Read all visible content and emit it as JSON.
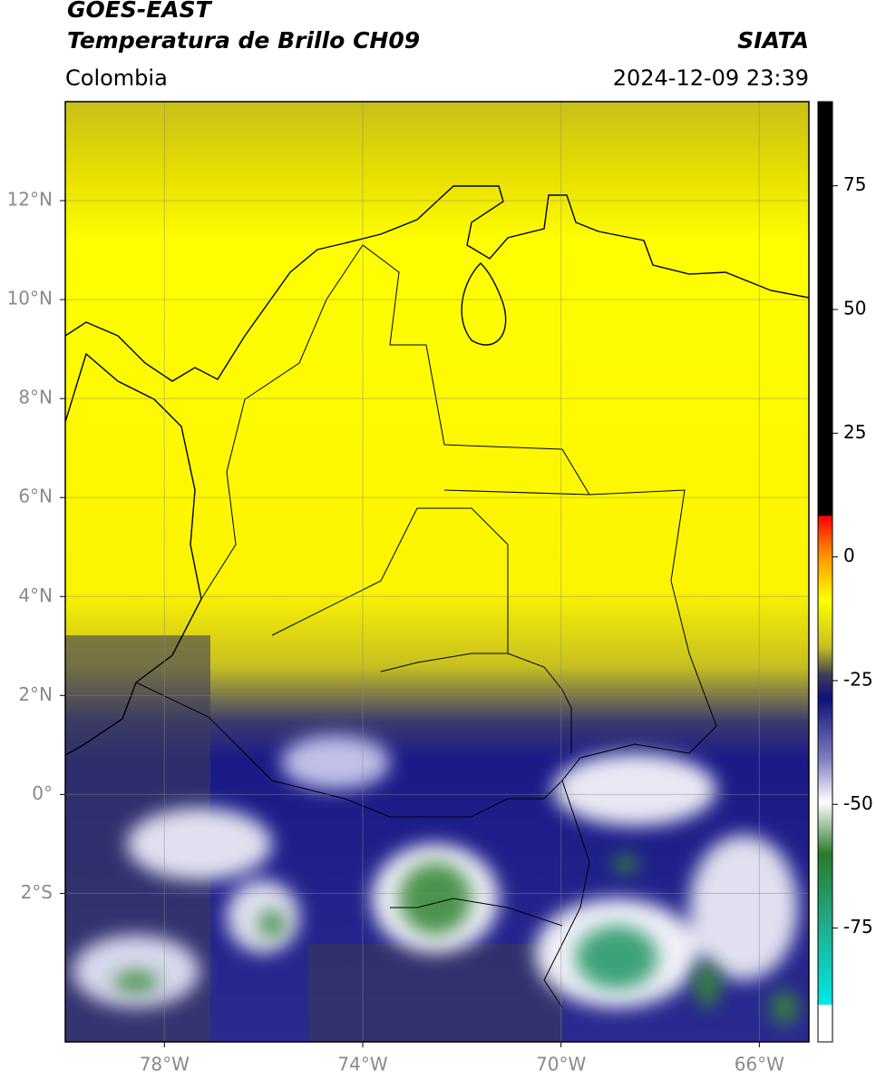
{
  "header": {
    "title": "GOES-EAST",
    "subtitle": "Temperatura de Brillo CH09",
    "region": "Colombia",
    "source": "SIATA",
    "datetime": "2024-12-09 23:39"
  },
  "map": {
    "xlim": [
      -80,
      -65
    ],
    "ylim": [
      -5,
      14
    ],
    "xticks": [
      {
        "value": -78,
        "label": "78°W"
      },
      {
        "value": -74,
        "label": "74°W"
      },
      {
        "value": -70,
        "label": "70°W"
      },
      {
        "value": -66,
        "label": "66°W"
      }
    ],
    "yticks": [
      {
        "value": 12,
        "label": "12°N"
      },
      {
        "value": 10,
        "label": "10°N"
      },
      {
        "value": 8,
        "label": "8°N"
      },
      {
        "value": 6,
        "label": "6°N"
      },
      {
        "value": 4,
        "label": "4°N"
      },
      {
        "value": 2,
        "label": "2°N"
      },
      {
        "value": 0,
        "label": "0°"
      },
      {
        "value": -2,
        "label": "2°S"
      }
    ]
  },
  "colorbar": {
    "lim": [
      -98,
      92
    ],
    "ticks": [
      75,
      50,
      25,
      0,
      -25,
      -50,
      -75
    ]
  }
}
